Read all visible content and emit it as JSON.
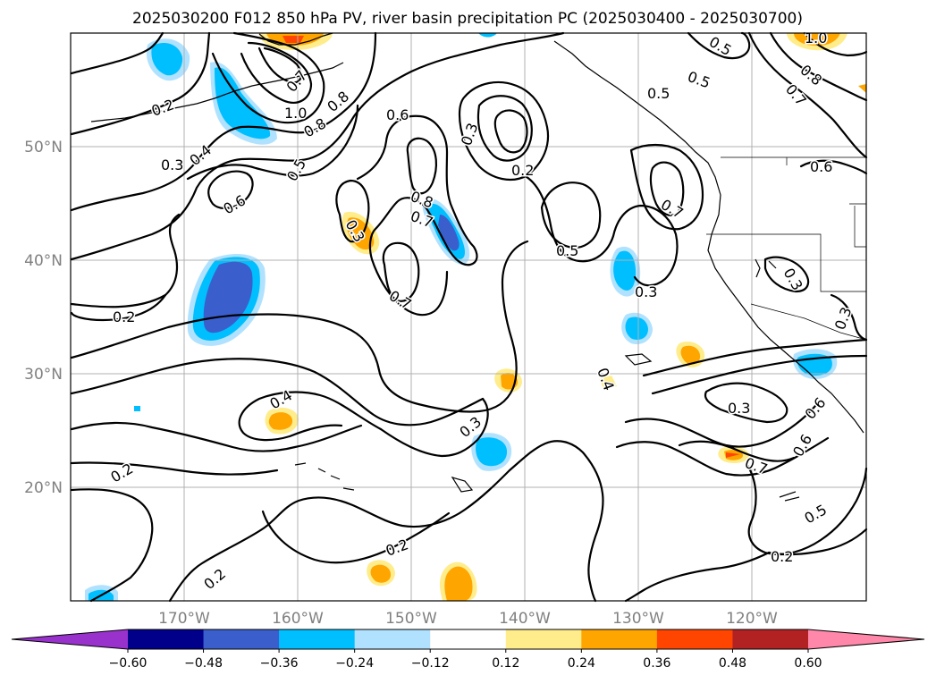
{
  "title": "2025030200 F012 850 hPa PV, river basin precipitation PC (2025030400 - 2025030700)",
  "map": {
    "lat_labels": [
      "50°N",
      "40°N",
      "30°N",
      "20°N"
    ],
    "lon_labels": [
      "170°W",
      "160°W",
      "150°W",
      "140°W",
      "130°W",
      "120°W"
    ],
    "extent": {
      "lon_min": -180,
      "lon_max": -110,
      "lat_min": 10,
      "lat_max": 60
    },
    "contour_labels": [
      "0.2",
      "0.3",
      "0.4",
      "0.5",
      "0.6",
      "0.7",
      "0.8",
      "1.0"
    ]
  },
  "colorbar": {
    "ticks": [
      "−0.60",
      "−0.48",
      "−0.36",
      "−0.24",
      "−0.12",
      "0.12",
      "0.24",
      "0.36",
      "0.48",
      "0.60"
    ],
    "colors": [
      "#9932cc",
      "#00008b",
      "#3a5fcd",
      "#00bfff",
      "#b0e2ff",
      "#ffffff",
      "#ffec8b",
      "#ffa500",
      "#ff4500",
      "#b22222",
      "#ff88aa"
    ]
  }
}
